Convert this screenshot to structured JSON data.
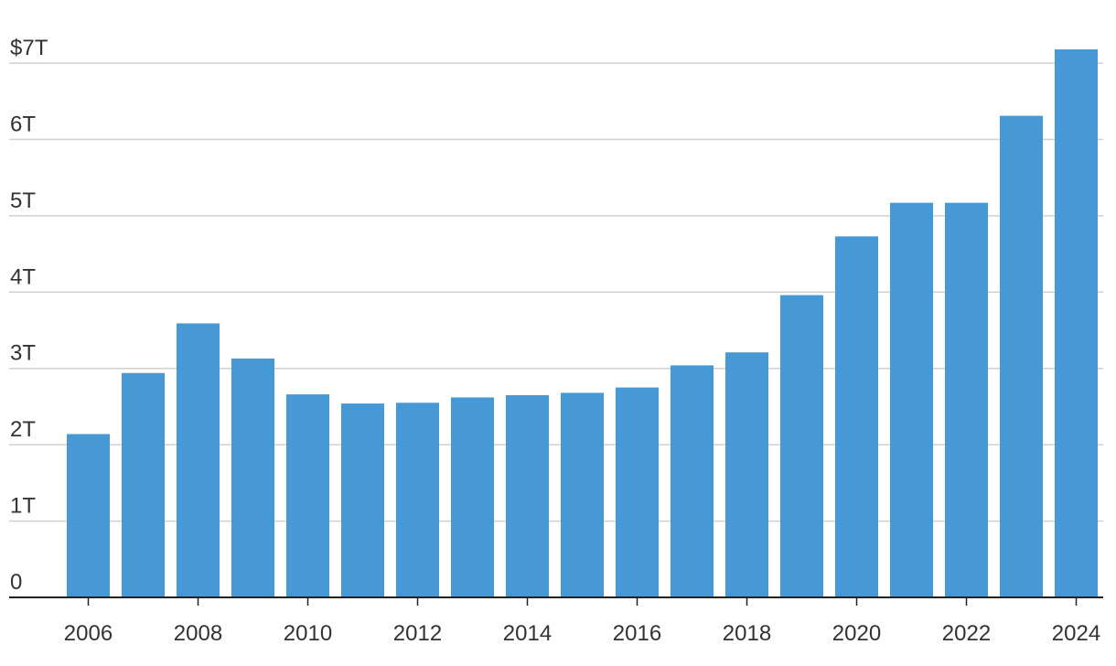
{
  "chart_data": {
    "type": "bar",
    "title": "",
    "xlabel": "",
    "ylabel": "",
    "categories": [
      "2006",
      "2007",
      "2008",
      "2009",
      "2010",
      "2011",
      "2012",
      "2013",
      "2014",
      "2015",
      "2016",
      "2017",
      "2018",
      "2019",
      "2020",
      "2021",
      "2022",
      "2023",
      "2024"
    ],
    "values": [
      2.14,
      2.94,
      3.59,
      3.13,
      2.66,
      2.54,
      2.55,
      2.62,
      2.65,
      2.68,
      2.75,
      3.04,
      3.21,
      3.96,
      4.73,
      5.17,
      5.17,
      6.31,
      7.18
    ],
    "ylim": [
      0,
      7
    ],
    "yticks": [
      0,
      1,
      2,
      3,
      4,
      5,
      6,
      7
    ],
    "ytick_labels": [
      "0",
      "1T",
      "2T",
      "3T",
      "4T",
      "5T",
      "6T",
      "$7T"
    ],
    "xtick_labels": [
      "2006",
      "2008",
      "2010",
      "2012",
      "2014",
      "2016",
      "2018",
      "2020",
      "2022",
      "2024"
    ],
    "grid": true,
    "legend": "none",
    "bar_color": "#4799d6"
  }
}
